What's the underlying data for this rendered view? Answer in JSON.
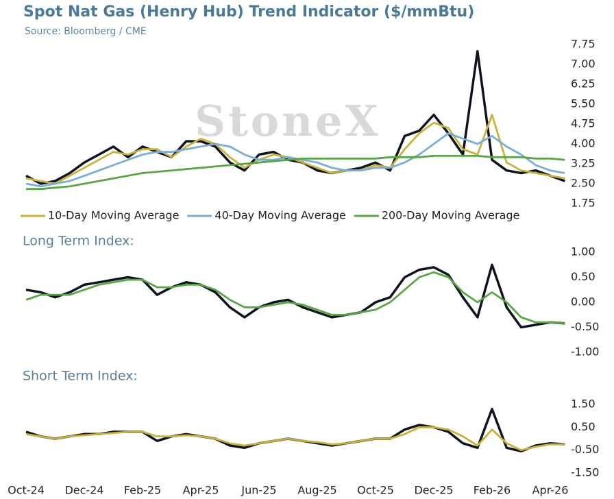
{
  "chart_data": [
    {
      "type": "line",
      "title": "Spot Nat Gas (Henry Hub) Trend Indicator ($/mmBtu)",
      "subtitle": "Source: Bloomberg / CME",
      "watermark": "StoneX",
      "ylim": [
        1.75,
        7.75
      ],
      "yticks": [
        7.75,
        {
          "value": 7,
          "label": "7.00"
        },
        6.25,
        {
          "value": 5.5,
          "label": "5.50"
        },
        4.75,
        {
          "value": 4,
          "label": "4.00"
        },
        3.25,
        {
          "value": 2.5,
          "label": "2.50"
        },
        1.75
      ],
      "legend": "bottom",
      "series": [
        {
          "color": "#0d1321",
          "values": [
            2.8,
            2.5,
            2.6,
            2.9,
            3.3,
            3.6,
            3.9,
            3.5,
            3.9,
            3.7,
            3.5,
            4.1,
            4.1,
            3.9,
            3.3,
            3.0,
            3.6,
            3.7,
            3.4,
            3.3,
            3.0,
            2.9,
            3.0,
            3.1,
            3.3,
            3.0,
            4.3,
            4.5,
            5.1,
            4.4,
            3.6,
            7.5,
            3.4,
            3.0,
            2.9,
            3.0,
            2.8,
            2.6
          ]
        },
        {
          "name": "10-Day Moving Average",
          "color": "#c9b23a",
          "values": [
            2.7,
            2.6,
            2.5,
            2.8,
            3.1,
            3.4,
            3.7,
            3.6,
            3.8,
            3.8,
            3.5,
            3.9,
            4.2,
            4.0,
            3.5,
            3.1,
            3.4,
            3.6,
            3.5,
            3.3,
            3.1,
            2.9,
            3.0,
            3.0,
            3.2,
            3.1,
            3.8,
            4.4,
            4.8,
            4.6,
            3.8,
            3.6,
            5.1,
            3.3,
            3.0,
            2.9,
            2.8,
            2.7
          ]
        },
        {
          "name": "40-Day Moving Average",
          "color": "#7aaed6",
          "values": [
            2.5,
            2.4,
            2.5,
            2.6,
            2.8,
            3.0,
            3.2,
            3.4,
            3.6,
            3.7,
            3.7,
            3.8,
            3.9,
            4.0,
            3.9,
            3.6,
            3.4,
            3.4,
            3.5,
            3.4,
            3.3,
            3.1,
            3.0,
            3.0,
            3.1,
            3.1,
            3.3,
            3.6,
            4.0,
            4.4,
            4.2,
            4.0,
            4.3,
            3.9,
            3.6,
            3.2,
            3.0,
            2.9
          ]
        },
        {
          "name": "200-Day Moving Average",
          "color": "#5aa545",
          "values": [
            2.3,
            2.3,
            2.35,
            2.4,
            2.5,
            2.6,
            2.7,
            2.8,
            2.9,
            2.95,
            3.0,
            3.05,
            3.1,
            3.15,
            3.2,
            3.25,
            3.3,
            3.35,
            3.4,
            3.45,
            3.45,
            3.45,
            3.45,
            3.45,
            3.45,
            3.5,
            3.5,
            3.5,
            3.55,
            3.55,
            3.55,
            3.55,
            3.5,
            3.5,
            3.5,
            3.45,
            3.45,
            3.4
          ]
        }
      ]
    },
    {
      "type": "line",
      "title": "Long Term Index:",
      "ylim": [
        -1,
        1
      ],
      "yticks": [
        {
          "value": 1,
          "label": "1.00"
        },
        {
          "value": 0.5,
          "label": "0.50"
        },
        {
          "value": 0,
          "label": "0.00"
        },
        {
          "value": -0.5,
          "label": "-0.50"
        },
        {
          "value": -1,
          "label": "-1.00"
        }
      ],
      "series": [
        {
          "color": "#0d1321",
          "values": [
            0.25,
            0.2,
            0.1,
            0.2,
            0.35,
            0.4,
            0.45,
            0.5,
            0.45,
            0.15,
            0.3,
            0.4,
            0.35,
            0.2,
            -0.1,
            -0.3,
            -0.1,
            0,
            0.05,
            -0.1,
            -0.2,
            -0.3,
            -0.25,
            -0.2,
            0.0,
            0.1,
            0.5,
            0.65,
            0.7,
            0.55,
            0.1,
            -0.3,
            0.75,
            -0.1,
            -0.5,
            -0.45,
            -0.4,
            -0.42
          ]
        },
        {
          "color": "#5aa545",
          "values": [
            0.05,
            0.15,
            0.15,
            0.15,
            0.25,
            0.35,
            0.4,
            0.45,
            0.45,
            0.3,
            0.3,
            0.35,
            0.35,
            0.25,
            0.05,
            -0.1,
            -0.1,
            -0.05,
            0,
            -0.05,
            -0.15,
            -0.25,
            -0.25,
            -0.2,
            -0.15,
            0.0,
            0.25,
            0.5,
            0.6,
            0.5,
            0.2,
            0.0,
            0.2,
            0.0,
            -0.3,
            -0.4,
            -0.4,
            -0.42
          ]
        }
      ]
    },
    {
      "type": "line",
      "title": "Short Term Index:",
      "ylim": [
        -1.5,
        1.5
      ],
      "yticks": [
        {
          "value": 1.5,
          "label": "1.50"
        },
        {
          "value": 0.5,
          "label": "0.50"
        },
        {
          "value": -0.5,
          "label": "-0.50"
        },
        {
          "value": -1.5,
          "label": "-1.50"
        }
      ],
      "categories": [
        "Oct-24",
        null,
        null,
        null,
        "Dec-24",
        null,
        null,
        null,
        "Feb-25",
        null,
        null,
        null,
        "Apr-25",
        null,
        null,
        null,
        "Jun-25",
        null,
        null,
        null,
        "Aug-25",
        null,
        null,
        null,
        "Oct-25",
        null,
        null,
        null,
        "Dec-25",
        null,
        null,
        null,
        "Feb-26",
        null,
        null,
        null,
        "Apr-26",
        null
      ],
      "series": [
        {
          "color": "#0d1321",
          "values": [
            0.3,
            0.1,
            0,
            0.1,
            0.2,
            0.2,
            0.3,
            0.3,
            0.3,
            -0.1,
            0.1,
            0.2,
            0.1,
            0,
            -0.3,
            -0.4,
            -0.2,
            -0.1,
            0,
            -0.1,
            -0.2,
            -0.3,
            -0.2,
            -0.1,
            0,
            0,
            0.4,
            0.6,
            0.5,
            0.3,
            -0.2,
            -0.4,
            1.3,
            -0.4,
            -0.55,
            -0.3,
            -0.2,
            -0.25
          ]
        },
        {
          "color": "#c9b23a",
          "values": [
            0.2,
            0.1,
            0,
            0.1,
            0.15,
            0.2,
            0.25,
            0.3,
            0.3,
            0.1,
            0.1,
            0.15,
            0.1,
            0,
            -0.2,
            -0.3,
            -0.2,
            -0.1,
            0,
            -0.1,
            -0.15,
            -0.25,
            -0.2,
            -0.1,
            0,
            0,
            0.2,
            0.5,
            0.5,
            0.4,
            0.1,
            -0.3,
            0.4,
            -0.2,
            -0.5,
            -0.35,
            -0.25,
            -0.25
          ]
        }
      ]
    }
  ]
}
